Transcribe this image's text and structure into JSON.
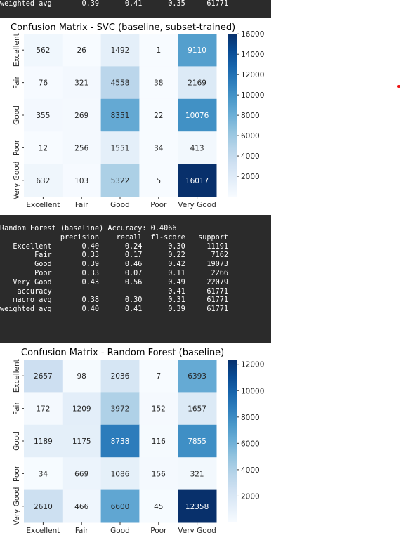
{
  "top_output": {
    "lines": [
      "weighted avg       0.39      0.41      0.35     61771"
    ]
  },
  "middle_output": {
    "lines": [
      "Random Forest (baseline) Accuracy: 0.4066",
      "              precision    recall  f1-score   support",
      "",
      "   Excellent       0.40      0.24      0.30     11191",
      "        Fair       0.33      0.17      0.22      7162",
      "        Good       0.39      0.46      0.42     19073",
      "        Poor       0.33      0.07      0.11      2266",
      "   Very Good       0.43      0.56      0.49     22079",
      "",
      "    accuracy                           0.41     61771",
      "   macro avg       0.38      0.30      0.31     61771",
      "weighted avg       0.40      0.41      0.39     61771"
    ]
  },
  "chart_data": [
    {
      "type": "heatmap",
      "title": "Confusion Matrix - SVC (baseline, subset-trained)",
      "categories": [
        "Excellent",
        "Fair",
        "Good",
        "Poor",
        "Very Good"
      ],
      "values": [
        [
          562,
          26,
          1492,
          1,
          9110
        ],
        [
          76,
          321,
          4558,
          38,
          2169
        ],
        [
          355,
          269,
          8351,
          22,
          10076
        ],
        [
          12,
          256,
          1551,
          34,
          413
        ],
        [
          632,
          103,
          5322,
          5,
          16017
        ]
      ],
      "vmin": 0,
      "vmax": 16017,
      "colorbar_ticks": [
        2000,
        4000,
        6000,
        8000,
        10000,
        12000,
        14000,
        16000
      ],
      "colormap": "Blues"
    },
    {
      "type": "heatmap",
      "title": "Confusion Matrix - Random Forest (baseline)",
      "categories": [
        "Excellent",
        "Fair",
        "Good",
        "Poor",
        "Very Good"
      ],
      "values": [
        [
          2657,
          98,
          2036,
          7,
          6393
        ],
        [
          172,
          1209,
          3972,
          152,
          1657
        ],
        [
          1189,
          1175,
          8738,
          116,
          7855
        ],
        [
          34,
          669,
          1086,
          156,
          321
        ],
        [
          2610,
          466,
          6600,
          45,
          12358
        ]
      ],
      "vmin": 0,
      "vmax": 12358,
      "colorbar_ticks": [
        2000,
        4000,
        6000,
        8000,
        10000,
        12000
      ],
      "colormap": "Blues"
    }
  ]
}
